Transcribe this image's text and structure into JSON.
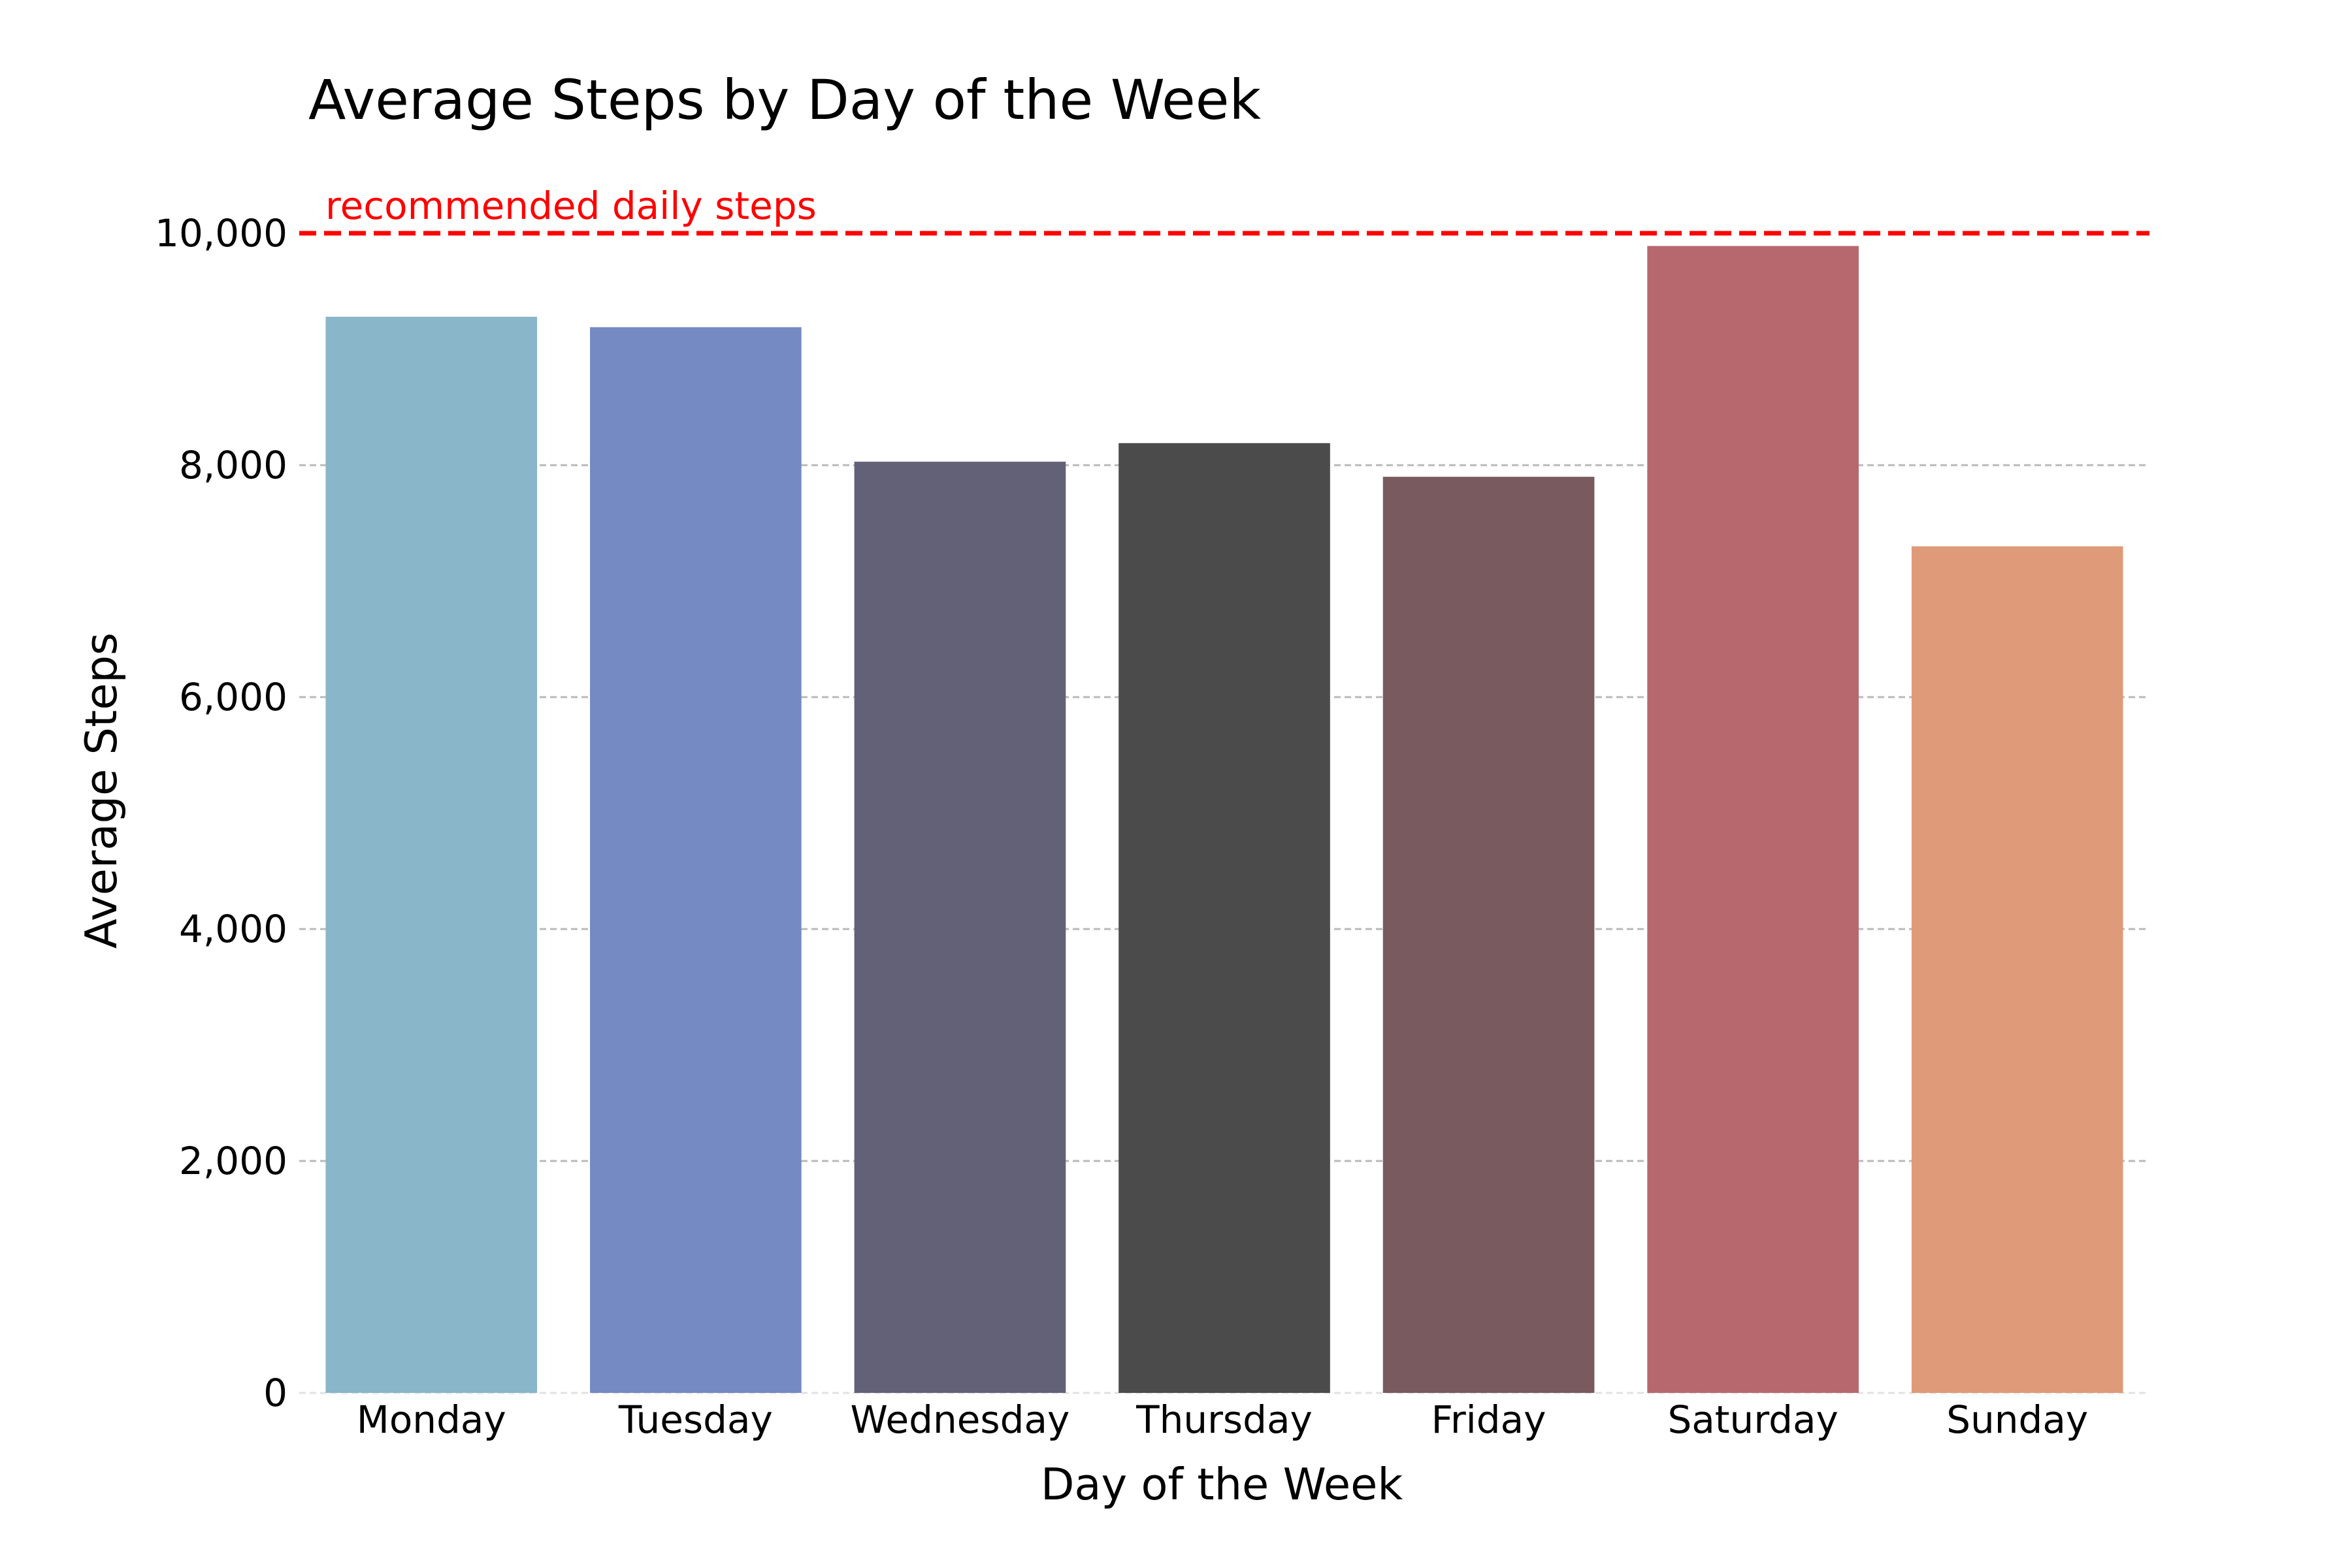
{
  "chart_data": {
    "type": "bar",
    "title": "Average Steps by Day of the Week",
    "xlabel": "Day of the Week",
    "ylabel": "Average Steps",
    "categories": [
      "Monday",
      "Tuesday",
      "Wednesday",
      "Thursday",
      "Friday",
      "Saturday",
      "Sunday"
    ],
    "values": [
      9280,
      9190,
      8030,
      8190,
      7900,
      9890,
      7300
    ],
    "colors": [
      "#89b6c8",
      "#758ac3",
      "#636177",
      "#4b4b4b",
      "#785a5f",
      "#b7686f",
      "#de9a79"
    ],
    "ylim": [
      0,
      10000
    ],
    "yticks": [
      0,
      2000,
      4000,
      6000,
      8000,
      10000
    ],
    "ytick_labels": [
      "0",
      "2,000",
      "4,000",
      "6,000",
      "8,000",
      "10,000"
    ],
    "grid": "y-dashed",
    "reference_line": {
      "value": 10000,
      "label": "recommended daily steps",
      "color": "#ff0000",
      "style": "dashed"
    }
  }
}
